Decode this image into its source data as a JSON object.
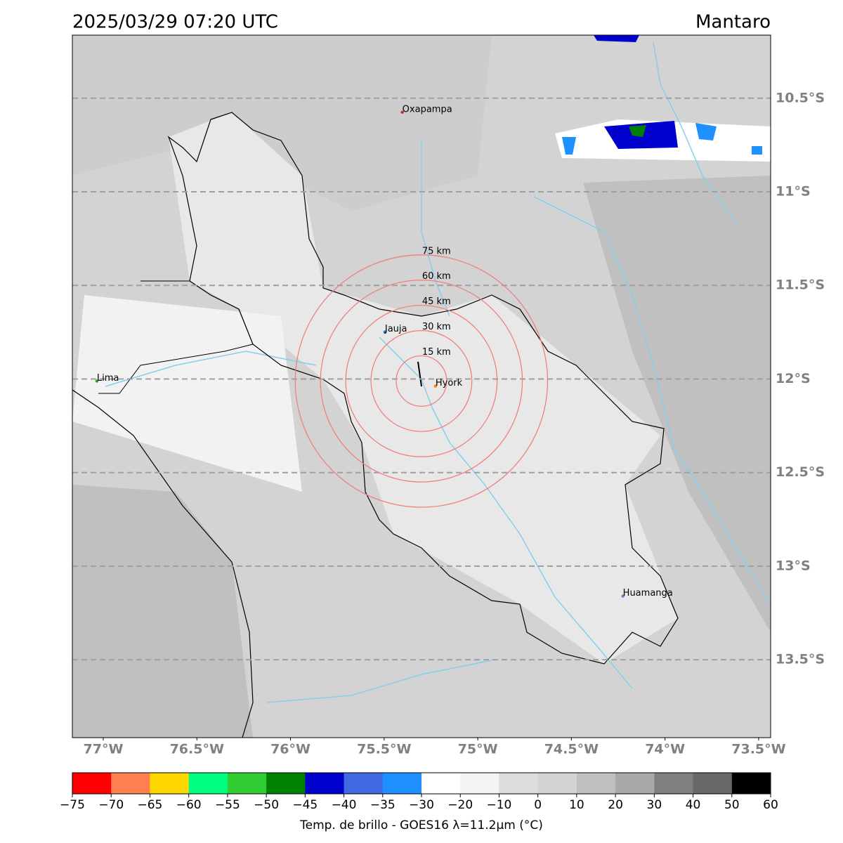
{
  "header": {
    "title": "2025/03/29 07:20 UTC",
    "region": "Mantaro"
  },
  "map": {
    "lon_range": [
      -77.165,
      -73.436
    ],
    "lat_range": [
      -13.916,
      -10.163
    ],
    "lon_ticks": [
      {
        "value": -77,
        "label": "77°W"
      },
      {
        "value": -76.5,
        "label": "76.5°W"
      },
      {
        "value": -76,
        "label": "76°W"
      },
      {
        "value": -75.5,
        "label": "75.5°W"
      },
      {
        "value": -75,
        "label": "75°W"
      },
      {
        "value": -74.5,
        "label": "74.5°W"
      },
      {
        "value": -74,
        "label": "74°W"
      },
      {
        "value": -73.5,
        "label": "73.5°W"
      }
    ],
    "lat_ticks": [
      {
        "value": -10.5,
        "label": "10.5°S"
      },
      {
        "value": -11,
        "label": "11°S"
      },
      {
        "value": -11.5,
        "label": "11.5°S"
      },
      {
        "value": -12,
        "label": "12°S"
      },
      {
        "value": -12.5,
        "label": "12.5°S"
      },
      {
        "value": -13,
        "label": "13°S"
      },
      {
        "value": -13.5,
        "label": "13.5°S"
      }
    ],
    "cities": [
      {
        "name": "Oxapampa",
        "lon": -75.403,
        "lat": -10.575,
        "color": "#d62728"
      },
      {
        "name": "Jauja",
        "lon": -75.496,
        "lat": -11.749,
        "color": "#1f77b4"
      },
      {
        "name": "Hyork",
        "lon": -75.226,
        "lat": -12.038,
        "color": "#ff7f0e"
      },
      {
        "name": "Lima",
        "lon": -77.034,
        "lat": -12.011,
        "color": "#2ca02c"
      },
      {
        "name": "Huamanga",
        "lon": -74.225,
        "lat": -13.16,
        "color": "#9467bd"
      }
    ],
    "rings": {
      "lon": -75.301,
      "lat": -12.011,
      "color": "#f08080",
      "radii": [
        {
          "value": 15,
          "label": "15 km"
        },
        {
          "value": 30,
          "label": "30 km"
        },
        {
          "value": 45,
          "label": "45 km"
        },
        {
          "value": 60,
          "label": "60 km"
        },
        {
          "value": 75,
          "label": "75 km"
        }
      ]
    }
  },
  "colorbar": {
    "label": "Temp. de brillo - GOES16 λ=11.2μm (°C)",
    "boundaries": [
      {
        "value": -75,
        "label": "−75"
      },
      {
        "value": -70,
        "label": "−70"
      },
      {
        "value": -65,
        "label": "−65"
      },
      {
        "value": -60,
        "label": "−60"
      },
      {
        "value": -55,
        "label": "−55"
      },
      {
        "value": -50,
        "label": "−50"
      },
      {
        "value": -45,
        "label": "−45"
      },
      {
        "value": -40,
        "label": "−40"
      },
      {
        "value": -35,
        "label": "−35"
      },
      {
        "value": -30,
        "label": "−30"
      },
      {
        "value": -20,
        "label": "−20"
      },
      {
        "value": -10,
        "label": "−10"
      },
      0,
      10,
      20,
      30,
      40,
      50,
      60
    ],
    "colors": [
      "#ff0000",
      "#ff7f50",
      "#ffd700",
      "#00ff7f",
      "#32cd32",
      "#008000",
      "#0000cd",
      "#4169e1",
      "#1e90ff",
      "#ffffff",
      "#f5f5f5",
      "#dcdcdc",
      "#d3d3d3",
      "#c0c0c0",
      "#a9a9a9",
      "#808080",
      "#696969",
      "#000000"
    ]
  }
}
